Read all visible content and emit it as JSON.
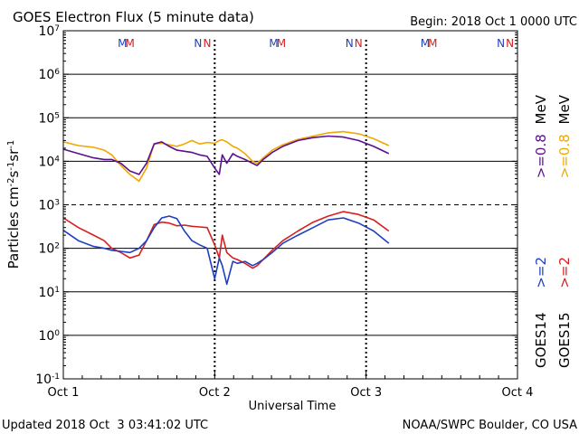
{
  "chart_data": {
    "type": "line",
    "title": "GOES Electron Flux (5 minute data)",
    "begin_label": "Begin: 2018 Oct 1 0000 UTC",
    "xlabel": "Universal Time",
    "ylabel_parts": {
      "base": "Particles cm",
      "e1": "-2",
      "s": "s",
      "e2": "-1",
      "sr": "sr",
      "e3": "-1"
    },
    "x_range_days": [
      0,
      3
    ],
    "x_ticks": [
      {
        "day": 0,
        "label": "Oct 1"
      },
      {
        "day": 1,
        "label": "Oct 2"
      },
      {
        "day": 2,
        "label": "Oct 3"
      },
      {
        "day": 3,
        "label": "Oct 4"
      }
    ],
    "y_log_range": [
      -1,
      7
    ],
    "y_ticks": [
      {
        "exp": -1,
        "label": "10",
        "sup": "-1"
      },
      {
        "exp": 0,
        "label": "10",
        "sup": "0"
      },
      {
        "exp": 1,
        "label": "10",
        "sup": "1"
      },
      {
        "exp": 2,
        "label": "10",
        "sup": "2"
      },
      {
        "exp": 3,
        "label": "10",
        "sup": "3"
      },
      {
        "exp": 4,
        "label": "10",
        "sup": "4"
      },
      {
        "exp": 5,
        "label": "10",
        "sup": "5"
      },
      {
        "exp": 6,
        "label": "10",
        "sup": "6"
      },
      {
        "exp": 7,
        "label": "10",
        "sup": "7"
      }
    ],
    "gridlines_exp": [
      0,
      1,
      2,
      4,
      5,
      6
    ],
    "threshold_exp": 3,
    "day_markers_days": [
      1,
      2
    ],
    "mn_markers": [
      {
        "letter": "M",
        "day": 0.39,
        "color": "#1f3fbf"
      },
      {
        "letter": "M",
        "day": 0.44,
        "color": "#d81e1e"
      },
      {
        "letter": "N",
        "day": 0.89,
        "color": "#1f3fbf"
      },
      {
        "letter": "N",
        "day": 0.95,
        "color": "#d81e1e"
      },
      {
        "letter": "M",
        "day": 1.39,
        "color": "#1f3fbf"
      },
      {
        "letter": "M",
        "day": 1.44,
        "color": "#d81e1e"
      },
      {
        "letter": "N",
        "day": 1.89,
        "color": "#1f3fbf"
      },
      {
        "letter": "N",
        "day": 1.95,
        "color": "#d81e1e"
      },
      {
        "letter": "M",
        "day": 2.39,
        "color": "#1f3fbf"
      },
      {
        "letter": "M",
        "day": 2.44,
        "color": "#d81e1e"
      },
      {
        "letter": "N",
        "day": 2.89,
        "color": "#1f3fbf"
      },
      {
        "letter": "N",
        "day": 2.95,
        "color": "#d81e1e"
      }
    ],
    "series": [
      {
        "name": "GOES15 >=0.8 MeV",
        "color": "#f0a800",
        "x": [
          0,
          0.1,
          0.2,
          0.27,
          0.32,
          0.38,
          0.44,
          0.5,
          0.55,
          0.6,
          0.65,
          0.7,
          0.75,
          0.8,
          0.85,
          0.9,
          0.95,
          1.0,
          1.03,
          1.05,
          1.08,
          1.12,
          1.15,
          1.2,
          1.25,
          1.28,
          1.32,
          1.38,
          1.45,
          1.55,
          1.65,
          1.75,
          1.85,
          1.95,
          2.05,
          2.15
        ],
        "y": [
          28000,
          23000,
          21000,
          18000,
          14000,
          8000,
          5000,
          3500,
          7000,
          25000,
          26000,
          24000,
          22000,
          25000,
          30000,
          25000,
          27000,
          26000,
          30000,
          31000,
          28000,
          22000,
          20000,
          15000,
          10000,
          9000,
          12000,
          18000,
          24000,
          32000,
          38000,
          45000,
          48000,
          43000,
          33000,
          23000
        ]
      },
      {
        "name": "GOES15 >=2 MeV",
        "color": "#d81e1e",
        "x": [
          0,
          0.1,
          0.2,
          0.27,
          0.32,
          0.38,
          0.44,
          0.5,
          0.55,
          0.6,
          0.65,
          0.7,
          0.75,
          0.8,
          0.85,
          0.9,
          0.95,
          1.0,
          1.03,
          1.05,
          1.08,
          1.12,
          1.15,
          1.2,
          1.25,
          1.28,
          1.32,
          1.38,
          1.45,
          1.55,
          1.65,
          1.75,
          1.85,
          1.95,
          2.05,
          2.15
        ],
        "y": [
          500,
          300,
          200,
          150,
          100,
          80,
          60,
          70,
          150,
          350,
          400,
          380,
          330,
          340,
          320,
          310,
          300,
          120,
          60,
          200,
          80,
          60,
          55,
          45,
          35,
          40,
          55,
          90,
          150,
          250,
          400,
          550,
          700,
          600,
          450,
          250
        ]
      },
      {
        "name": "GOES14 >=0.8 MeV",
        "color": "#5a1090",
        "x": [
          0,
          0.1,
          0.2,
          0.27,
          0.32,
          0.38,
          0.44,
          0.5,
          0.55,
          0.6,
          0.65,
          0.7,
          0.75,
          0.8,
          0.85,
          0.9,
          0.95,
          1.0,
          1.03,
          1.05,
          1.08,
          1.12,
          1.15,
          1.2,
          1.25,
          1.28,
          1.32,
          1.38,
          1.45,
          1.55,
          1.65,
          1.75,
          1.85,
          1.95,
          2.05,
          2.15
        ],
        "y": [
          19000,
          15000,
          12000,
          11000,
          11000,
          9000,
          6000,
          5000,
          9000,
          25000,
          28000,
          22000,
          18000,
          17000,
          16000,
          14000,
          13000,
          7000,
          5000,
          14000,
          9000,
          15000,
          13000,
          11000,
          9000,
          8000,
          11000,
          16000,
          22000,
          30000,
          35000,
          38000,
          36000,
          30000,
          22000,
          15000
        ]
      },
      {
        "name": "GOES14 >=2 MeV",
        "color": "#1f3fbf",
        "x": [
          0,
          0.1,
          0.2,
          0.27,
          0.32,
          0.38,
          0.44,
          0.5,
          0.55,
          0.6,
          0.65,
          0.7,
          0.75,
          0.8,
          0.85,
          0.9,
          0.95,
          1.0,
          1.03,
          1.05,
          1.08,
          1.12,
          1.15,
          1.2,
          1.25,
          1.28,
          1.32,
          1.38,
          1.45,
          1.55,
          1.65,
          1.75,
          1.85,
          1.95,
          2.05,
          2.15
        ],
        "y": [
          260,
          150,
          110,
          100,
          90,
          85,
          80,
          100,
          150,
          300,
          500,
          550,
          480,
          250,
          150,
          120,
          100,
          20,
          60,
          40,
          15,
          50,
          45,
          50,
          40,
          45,
          55,
          80,
          130,
          200,
          300,
          450,
          500,
          380,
          250,
          130
        ]
      }
    ],
    "legend_left": {
      "goes": "GOES14",
      "e2": ">=2",
      "e08": ">=0.8",
      "unit": "MeV",
      "c2": "#1f3fbf",
      "c08": "#5a1090"
    },
    "legend_right": {
      "goes": "GOES15",
      "e2": ">=2",
      "e08": ">=0.8",
      "unit": "MeV",
      "c2": "#d81e1e",
      "c08": "#f0a800"
    },
    "footer_left": "Updated 2018 Oct  3 03:41:02 UTC",
    "footer_right": "NOAA/SWPC Boulder, CO USA"
  }
}
